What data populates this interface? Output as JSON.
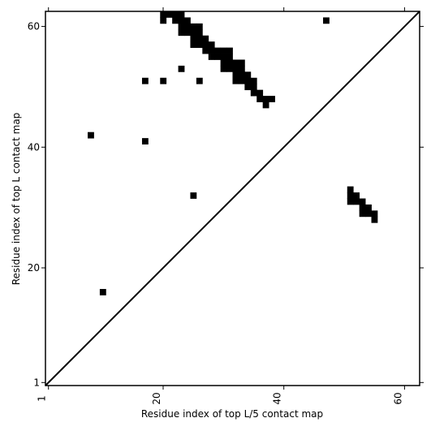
{
  "chart_data": {
    "type": "heatmap",
    "title": "",
    "xlabel": "Residue index of top L/5 contact map",
    "ylabel": "Residue index of top L contact map",
    "xlim": [
      0.5,
      62.5
    ],
    "ylim": [
      0.5,
      62.5
    ],
    "xticks": [
      1,
      20,
      40,
      60
    ],
    "yticks": [
      1,
      20,
      40,
      60
    ],
    "diagonal": true,
    "color": "#000000",
    "upper_left_cells": [
      [
        20,
        61
      ],
      [
        20,
        62
      ],
      [
        21,
        62
      ],
      [
        22,
        61
      ],
      [
        22,
        62
      ],
      [
        23,
        59
      ],
      [
        23,
        60
      ],
      [
        23,
        61
      ],
      [
        23,
        62
      ],
      [
        24,
        59
      ],
      [
        24,
        60
      ],
      [
        24,
        61
      ],
      [
        25,
        57
      ],
      [
        25,
        58
      ],
      [
        25,
        59
      ],
      [
        25,
        60
      ],
      [
        26,
        57
      ],
      [
        26,
        58
      ],
      [
        26,
        59
      ],
      [
        26,
        60
      ],
      [
        27,
        56
      ],
      [
        27,
        57
      ],
      [
        27,
        58
      ],
      [
        28,
        55
      ],
      [
        28,
        56
      ],
      [
        28,
        57
      ],
      [
        29,
        55
      ],
      [
        29,
        56
      ],
      [
        30,
        53
      ],
      [
        30,
        54
      ],
      [
        30,
        55
      ],
      [
        30,
        56
      ],
      [
        31,
        53
      ],
      [
        31,
        54
      ],
      [
        31,
        55
      ],
      [
        31,
        56
      ],
      [
        32,
        51
      ],
      [
        32,
        52
      ],
      [
        32,
        53
      ],
      [
        32,
        54
      ],
      [
        33,
        51
      ],
      [
        33,
        52
      ],
      [
        33,
        53
      ],
      [
        33,
        54
      ],
      [
        34,
        50
      ],
      [
        34,
        51
      ],
      [
        34,
        52
      ],
      [
        35,
        49
      ],
      [
        35,
        50
      ],
      [
        35,
        51
      ],
      [
        36,
        48
      ],
      [
        36,
        49
      ],
      [
        37,
        47
      ],
      [
        37,
        48
      ],
      [
        38,
        48
      ],
      [
        17,
        51
      ],
      [
        20,
        51
      ],
      [
        23,
        53
      ],
      [
        26,
        51
      ],
      [
        8,
        42
      ],
      [
        17,
        41
      ],
      [
        47,
        61
      ]
    ],
    "lower_right_cells": [
      [
        51,
        33
      ],
      [
        51,
        32
      ],
      [
        51,
        31
      ],
      [
        52,
        32
      ],
      [
        52,
        31
      ],
      [
        53,
        31
      ],
      [
        53,
        30
      ],
      [
        53,
        29
      ],
      [
        54,
        30
      ],
      [
        54,
        29
      ],
      [
        55,
        29
      ],
      [
        55,
        28
      ],
      [
        25,
        32
      ],
      [
        10,
        16
      ]
    ]
  }
}
